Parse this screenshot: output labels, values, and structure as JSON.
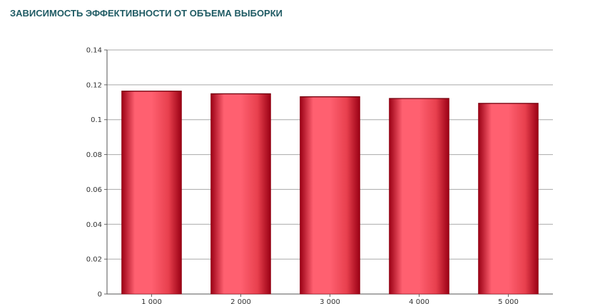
{
  "chart_data": {
    "type": "bar",
    "title": "ЗАВИСИМОСТЬ ЭФФЕКТИВНОСТИ ОТ ОБЪЕМА ВЫБОРКИ",
    "categories": [
      "1 000",
      "2 000",
      "3 000",
      "4 000",
      "5 000"
    ],
    "values": [
      0.1165,
      0.115,
      0.1133,
      0.1123,
      0.1095
    ],
    "xlabel": "",
    "ylabel": "",
    "ylim": [
      0,
      0.14
    ],
    "yticks": [
      0,
      0.02,
      0.04,
      0.06,
      0.08,
      0.1,
      0.12,
      0.14
    ],
    "ytick_labels": [
      "0",
      "0.02",
      "0.04",
      "0.06",
      "0.08",
      "0.1",
      "0.12",
      "0.14"
    ],
    "grid": true,
    "legend": "none",
    "colors": {
      "bar_edge": "#8a0010",
      "bar_mid": "#ff6070",
      "bar_dark": "#9a0014",
      "grid": "#a9a9a9",
      "title": "#1e5a63"
    }
  }
}
